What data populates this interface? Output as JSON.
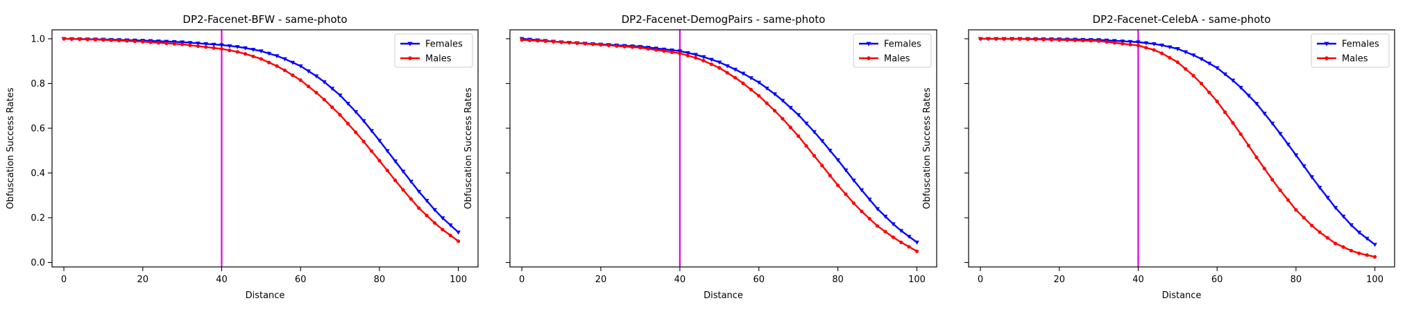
{
  "chart_data": [
    {
      "type": "line",
      "title": "DP2-Facenet-BFW - same-photo",
      "xlabel": "Distance",
      "ylabel": "Obfuscation Success Rates",
      "xlim": [
        -3,
        105
      ],
      "ylim": [
        -0.02,
        1.04
      ],
      "xticks": [
        0,
        20,
        40,
        60,
        80,
        100
      ],
      "yticks": [
        0.0,
        0.2,
        0.4,
        0.6,
        0.8,
        1.0
      ],
      "xtick_labels": [
        "0",
        "20",
        "40",
        "60",
        "80",
        "100"
      ],
      "ytick_labels": [
        "0.0",
        "0.2",
        "0.4",
        "0.6",
        "0.8",
        "1.0"
      ],
      "show_yticklabels": true,
      "vline": {
        "x": 40,
        "color": "#e000e0"
      },
      "legend": "upper-right",
      "grid": false,
      "series": [
        {
          "name": "Females",
          "color": "#0000ff",
          "marker": "triangle-down",
          "points": [
            [
              0,
              1.0
            ],
            [
              10,
              0.997
            ],
            [
              20,
              0.992
            ],
            [
              30,
              0.985
            ],
            [
              40,
              0.972
            ],
            [
              45,
              0.962
            ],
            [
              50,
              0.945
            ],
            [
              55,
              0.918
            ],
            [
              60,
              0.878
            ],
            [
              65,
              0.822
            ],
            [
              70,
              0.748
            ],
            [
              75,
              0.655
            ],
            [
              80,
              0.545
            ],
            [
              85,
              0.43
            ],
            [
              90,
              0.317
            ],
            [
              95,
              0.215
            ],
            [
              100,
              0.135
            ]
          ]
        },
        {
          "name": "Males",
          "color": "#ff0000",
          "marker": "circle",
          "points": [
            [
              0,
              1.0
            ],
            [
              10,
              0.995
            ],
            [
              20,
              0.987
            ],
            [
              30,
              0.975
            ],
            [
              40,
              0.955
            ],
            [
              45,
              0.938
            ],
            [
              50,
              0.91
            ],
            [
              55,
              0.87
            ],
            [
              60,
              0.815
            ],
            [
              65,
              0.745
            ],
            [
              70,
              0.66
            ],
            [
              75,
              0.562
            ],
            [
              80,
              0.455
            ],
            [
              85,
              0.345
            ],
            [
              90,
              0.243
            ],
            [
              95,
              0.16
            ],
            [
              100,
              0.095
            ]
          ]
        }
      ]
    },
    {
      "type": "line",
      "title": "DP2-Facenet-DemogPairs - same-photo",
      "xlabel": "Distance",
      "ylabel": "Obfuscation Success Rates",
      "xlim": [
        -3,
        105
      ],
      "ylim": [
        -0.02,
        1.04
      ],
      "xticks": [
        0,
        20,
        40,
        60,
        80,
        100
      ],
      "yticks": [
        0.0,
        0.2,
        0.4,
        0.6,
        0.8,
        1.0
      ],
      "xtick_labels": [
        "0",
        "20",
        "40",
        "60",
        "80",
        "100"
      ],
      "ytick_labels": [
        "0.0",
        "0.2",
        "0.4",
        "0.6",
        "0.8",
        "1.0"
      ],
      "show_yticklabels": false,
      "vline": {
        "x": 40,
        "color": "#e000e0"
      },
      "legend": "upper-right",
      "grid": false,
      "series": [
        {
          "name": "Females",
          "color": "#0000ff",
          "marker": "triangle-down",
          "points": [
            [
              0,
              1.0
            ],
            [
              10,
              0.985
            ],
            [
              20,
              0.975
            ],
            [
              30,
              0.965
            ],
            [
              40,
              0.945
            ],
            [
              45,
              0.925
            ],
            [
              50,
              0.895
            ],
            [
              55,
              0.855
            ],
            [
              60,
              0.805
            ],
            [
              65,
              0.74
            ],
            [
              70,
              0.66
            ],
            [
              75,
              0.565
            ],
            [
              80,
              0.458
            ],
            [
              85,
              0.345
            ],
            [
              90,
              0.24
            ],
            [
              95,
              0.155
            ],
            [
              100,
              0.09
            ]
          ]
        },
        {
          "name": "Males",
          "color": "#ff0000",
          "marker": "circle",
          "points": [
            [
              0,
              0.995
            ],
            [
              10,
              0.985
            ],
            [
              20,
              0.973
            ],
            [
              30,
              0.96
            ],
            [
              40,
              0.935
            ],
            [
              45,
              0.91
            ],
            [
              50,
              0.87
            ],
            [
              55,
              0.815
            ],
            [
              60,
              0.745
            ],
            [
              65,
              0.662
            ],
            [
              70,
              0.565
            ],
            [
              75,
              0.455
            ],
            [
              80,
              0.345
            ],
            [
              85,
              0.245
            ],
            [
              90,
              0.163
            ],
            [
              95,
              0.1
            ],
            [
              100,
              0.05
            ]
          ]
        }
      ]
    },
    {
      "type": "line",
      "title": "DP2-Facenet-CelebA - same-photo",
      "xlabel": "Distance",
      "ylabel": "Obfuscation Success Rates",
      "xlim": [
        -3,
        105
      ],
      "ylim": [
        -0.02,
        1.04
      ],
      "xticks": [
        0,
        20,
        40,
        60,
        80,
        100
      ],
      "yticks": [
        0.0,
        0.2,
        0.4,
        0.6,
        0.8,
        1.0
      ],
      "xtick_labels": [
        "0",
        "20",
        "40",
        "60",
        "80",
        "100"
      ],
      "ytick_labels": [
        "0.0",
        "0.2",
        "0.4",
        "0.6",
        "0.8",
        "1.0"
      ],
      "show_yticklabels": false,
      "vline": {
        "x": 40,
        "color": "#e000e0"
      },
      "legend": "upper-right",
      "grid": false,
      "series": [
        {
          "name": "Females",
          "color": "#0000ff",
          "marker": "triangle-down",
          "points": [
            [
              0,
              1.0
            ],
            [
              10,
              1.0
            ],
            [
              20,
              0.998
            ],
            [
              30,
              0.995
            ],
            [
              40,
              0.985
            ],
            [
              45,
              0.975
            ],
            [
              50,
              0.955
            ],
            [
              55,
              0.92
            ],
            [
              60,
              0.87
            ],
            [
              65,
              0.8
            ],
            [
              70,
              0.71
            ],
            [
              75,
              0.6
            ],
            [
              80,
              0.48
            ],
            [
              85,
              0.358
            ],
            [
              90,
              0.245
            ],
            [
              95,
              0.148
            ],
            [
              100,
              0.08
            ]
          ]
        },
        {
          "name": "Males",
          "color": "#ff0000",
          "marker": "circle",
          "points": [
            [
              0,
              1.0
            ],
            [
              10,
              0.999
            ],
            [
              20,
              0.995
            ],
            [
              30,
              0.99
            ],
            [
              40,
              0.97
            ],
            [
              45,
              0.945
            ],
            [
              50,
              0.895
            ],
            [
              55,
              0.82
            ],
            [
              60,
              0.72
            ],
            [
              65,
              0.6
            ],
            [
              70,
              0.47
            ],
            [
              75,
              0.345
            ],
            [
              80,
              0.235
            ],
            [
              85,
              0.148
            ],
            [
              90,
              0.085
            ],
            [
              95,
              0.045
            ],
            [
              100,
              0.025
            ]
          ]
        }
      ]
    }
  ]
}
